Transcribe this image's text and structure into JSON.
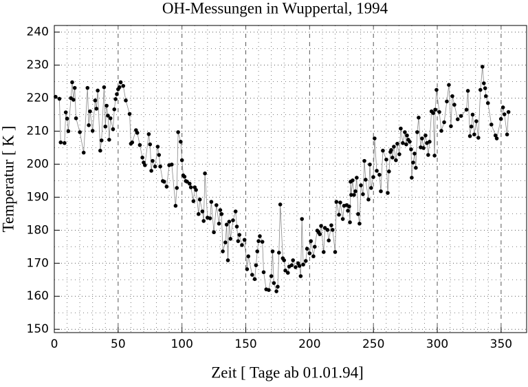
{
  "chart_data": {
    "type": "line",
    "title": "OH-Messungen in Wuppertal, 1994",
    "x_label": "Zeit [ Tage ab 01.01.94]",
    "y_label": "Temperatur [ K ]",
    "x": [
      1,
      4,
      5,
      8,
      9,
      10,
      11,
      13,
      14,
      15,
      16,
      17,
      20,
      23,
      26,
      27,
      28,
      30,
      32,
      33,
      34,
      36,
      37,
      39,
      40,
      41,
      42,
      43,
      44,
      46,
      47,
      48,
      49,
      50,
      51,
      52,
      54,
      56,
      59,
      60,
      61,
      64,
      65,
      67,
      69,
      70,
      71,
      74,
      75,
      76,
      77,
      79,
      81,
      82,
      83,
      85,
      86,
      88,
      90,
      92,
      95,
      96,
      97,
      99,
      100,
      101,
      102,
      103,
      104,
      106,
      107,
      109,
      110,
      111,
      113,
      114,
      116,
      117,
      118,
      120,
      122,
      123,
      125,
      127,
      129,
      130,
      131,
      132,
      134,
      135,
      136,
      137,
      138,
      140,
      142,
      143,
      144,
      145,
      147,
      149,
      151,
      152,
      155,
      157,
      158,
      159,
      160,
      161,
      163,
      164,
      166,
      168,
      170,
      171,
      172,
      174,
      175,
      176,
      177,
      179,
      180,
      181,
      183,
      184,
      186,
      187,
      189,
      191,
      192,
      193,
      194,
      195,
      197,
      198,
      200,
      201,
      203,
      204,
      206,
      207,
      208,
      209,
      211,
      212,
      214,
      215,
      217,
      218,
      220,
      221,
      223,
      224,
      226,
      227,
      229,
      230,
      231,
      231.6,
      232.1,
      232.6,
      233.7,
      234.8,
      235.9,
      236.9,
      238,
      239.1,
      240.2,
      241.8,
      242.9,
      243.9,
      246.1,
      247.2,
      248.2,
      249.9,
      250.9,
      252.6,
      254.7,
      255.8,
      257.4,
      260.1,
      261.2,
      262.2,
      263.3,
      263.9,
      264.9,
      266,
      267.6,
      268.7,
      270.3,
      271.4,
      273,
      274.6,
      275.7,
      276.3,
      277.3,
      278.4,
      279.5,
      280,
      281.1,
      282.2,
      283.2,
      284.3,
      285.4,
      287,
      288.1,
      289.2,
      290.8,
      291.9,
      292.9,
      294,
      295.5,
      296.8,
      297.9,
      298.4,
      299.4,
      301.6,
      303.2,
      305.4,
      307.5,
      309.1,
      310.7,
      311.8,
      313.4,
      316,
      318.6,
      322.9,
      324,
      325.6,
      326.7,
      327.7,
      329,
      330.6,
      332.2,
      333.8,
      335.4,
      336.5,
      337.5,
      338.1,
      339.7,
      342.4,
      345.6,
      346.6,
      349.9,
      351.5,
      352.6,
      354.7,
      355.8
    ],
    "values": [
      220.4,
      219.8,
      206.6,
      206.4,
      215.7,
      213.8,
      210,
      220,
      224.8,
      219.5,
      223.1,
      213.9,
      209.7,
      203.5,
      223.1,
      211.8,
      216,
      210.1,
      219.3,
      216.8,
      222.3,
      204.1,
      207.2,
      223.3,
      211.4,
      217.7,
      214.7,
      207.4,
      213.9,
      210.6,
      216.6,
      219.7,
      221.2,
      222.7,
      223.3,
      224.8,
      223.7,
      219.3,
      215.2,
      206.2,
      206.6,
      210.3,
      209.5,
      205.8,
      202,
      200.5,
      199.7,
      209.1,
      206,
      198,
      201,
      199.3,
      205.3,
      202.8,
      199.3,
      194.9,
      194.7,
      193.2,
      199.7,
      199.9,
      187.4,
      192.8,
      209.7,
      206.8,
      201.2,
      196.6,
      196.2,
      194.9,
      194.7,
      194.1,
      193,
      188.8,
      193,
      192.2,
      184.9,
      189.3,
      185.7,
      182.8,
      197.2,
      183.8,
      183.6,
      188.6,
      179.4,
      187.6,
      182,
      186.1,
      184.9,
      173.6,
      176.3,
      181.7,
      170.9,
      182.6,
      177.4,
      183,
      185.7,
      181.1,
      176.7,
      178.6,
      175.5,
      177.1,
      168.2,
      172.1,
      166.5,
      165.2,
      169.4,
      173.6,
      176.7,
      178.2,
      176.5,
      167.3,
      162.1,
      161.9,
      166.1,
      173.6,
      164,
      161.5,
      162.9,
      173.2,
      187.8,
      171.5,
      170.9,
      167.8,
      167.1,
      169,
      169.4,
      170.9,
      168.8,
      170,
      169.2,
      166.1,
      183.4,
      169.6,
      170.7,
      174.4,
      173,
      176.7,
      172.1,
      175,
      179.9,
      179.4,
      178.8,
      181.3,
      173.4,
      180.7,
      180.1,
      176.9,
      181.5,
      180.1,
      173.4,
      188.6,
      184.7,
      188.4,
      183.4,
      187.4,
      187.6,
      185.9,
      187.2,
      182.4,
      194.7,
      190.7,
      195.1,
      190.7,
      191.8,
      195.9,
      184.9,
      182,
      193.6,
      190.9,
      201,
      195.3,
      189.3,
      199.9,
      192.8,
      196.1,
      207.8,
      198,
      196.8,
      191.8,
      204.1,
      201.4,
      191.3,
      197.8,
      203.7,
      204.3,
      202,
      205.3,
      201.2,
      206.2,
      203,
      210.8,
      206.4,
      209.7,
      206,
      208.7,
      207.4,
      206.8,
      204.5,
      195.9,
      200.5,
      203.2,
      198.9,
      209.7,
      214.1,
      205.1,
      207.8,
      204.9,
      208.7,
      206.4,
      202.8,
      206.8,
      216,
      215.5,
      202.6,
      216.5,
      222.5,
      215.8,
      210.1,
      212.7,
      219,
      224,
      211.5,
      220.6,
      218,
      213.6,
      214.6,
      216.5,
      222.2,
      208.5,
      211.4,
      215,
      209,
      213,
      208,
      222.5,
      229.5,
      224.5,
      223,
      220.6,
      218.5,
      212,
      208.7,
      207.8,
      213.7,
      217.2,
      215.1,
      209,
      215.8
    ],
    "color": "#000000",
    "line_color": "#888888",
    "xlim": [
      0,
      370
    ],
    "ylim": [
      149,
      242
    ],
    "xticks": [
      0,
      50,
      100,
      150,
      200,
      250,
      300,
      350
    ],
    "yticks": [
      150,
      160,
      170,
      180,
      190,
      200,
      210,
      220,
      230,
      240
    ],
    "grid": true
  }
}
